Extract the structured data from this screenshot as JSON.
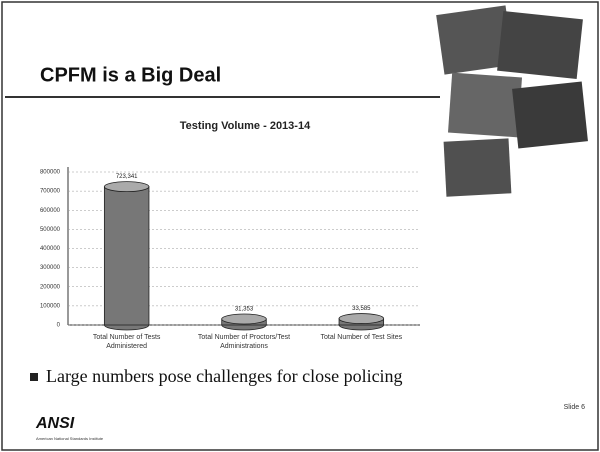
{
  "slide": {
    "title": "CPFM is a Big Deal",
    "bullet": "Large numbers pose challenges for close policing",
    "logo": "ANSI",
    "logo_subtitle": "American National Standards Institute",
    "slide_number": "Slide 6"
  },
  "chart_data": {
    "type": "bar",
    "title": "Testing Volume - 2013-14",
    "categories": [
      "Total Number of Tests Administered",
      "Total Number of Proctors/Test Administrations",
      "Total Number of Test Sites"
    ],
    "values": [
      723341,
      31353,
      33585
    ],
    "value_labels": [
      "723,341",
      "31,353",
      "33,585"
    ],
    "color": "#777777",
    "ylim": [
      0,
      800000
    ],
    "yticks": [
      0,
      100000,
      200000,
      300000,
      400000,
      500000,
      600000,
      700000,
      800000
    ],
    "grid": true
  }
}
